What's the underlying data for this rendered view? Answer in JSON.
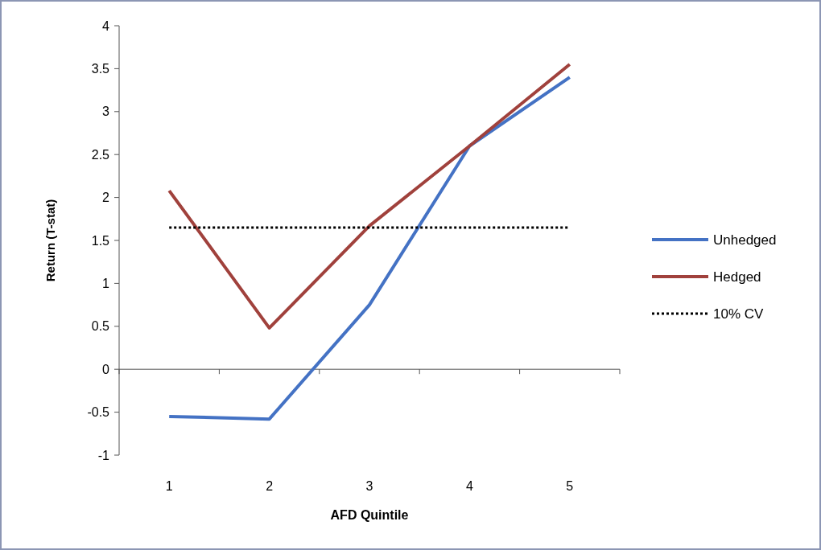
{
  "chart_data": {
    "type": "line",
    "xlabel": "AFD Quintile",
    "ylabel": "Return (T-stat)",
    "categories": [
      "1",
      "2",
      "3",
      "4",
      "5"
    ],
    "series": [
      {
        "name": "Unhedged",
        "color": "#4472c4",
        "values": [
          -0.55,
          -0.58,
          0.75,
          2.6,
          3.4
        ]
      },
      {
        "name": "Hedged",
        "color": "#a0413c",
        "values": [
          2.08,
          0.48,
          1.67,
          2.6,
          3.55
        ]
      },
      {
        "name": "10% CV",
        "color": "#000000",
        "values": [
          1.65,
          1.65,
          1.65,
          1.65,
          1.65
        ],
        "line_style": "dotted"
      }
    ],
    "ylim": [
      -1,
      4
    ],
    "yticks": [
      -1,
      -0.5,
      0,
      0.5,
      1,
      1.5,
      2,
      2.5,
      3,
      3.5,
      4
    ],
    "legend": "right",
    "marker": "none",
    "line_style": "solid"
  }
}
